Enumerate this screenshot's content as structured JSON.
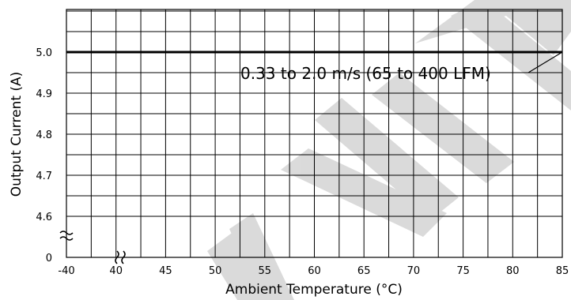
{
  "chart_data": {
    "type": "line",
    "title": "",
    "xlabel": "Ambient Temperature (°C)",
    "ylabel": "Output Current (A)",
    "x_ticks": [
      "-40",
      "40",
      "45",
      "50",
      "55",
      "60",
      "65",
      "70",
      "75",
      "80",
      "85"
    ],
    "y_ticks": [
      "0",
      "4.6",
      "4.7",
      "4.8",
      "4.9",
      "5.0"
    ],
    "xlim": [
      35,
      85
    ],
    "ylim": [
      4.5,
      5.1
    ],
    "axis_breaks": {
      "x": true,
      "y": true
    },
    "grid": true,
    "series": [
      {
        "x": [
          -40,
          85
        ],
        "y": [
          5.0,
          5.0
        ]
      }
    ],
    "annotation": {
      "text": "0.33 to 2.0 m/s (65 to 400 LFM)",
      "points_to": {
        "x": 85,
        "y": 5.0
      }
    },
    "watermark_text": "USED"
  }
}
